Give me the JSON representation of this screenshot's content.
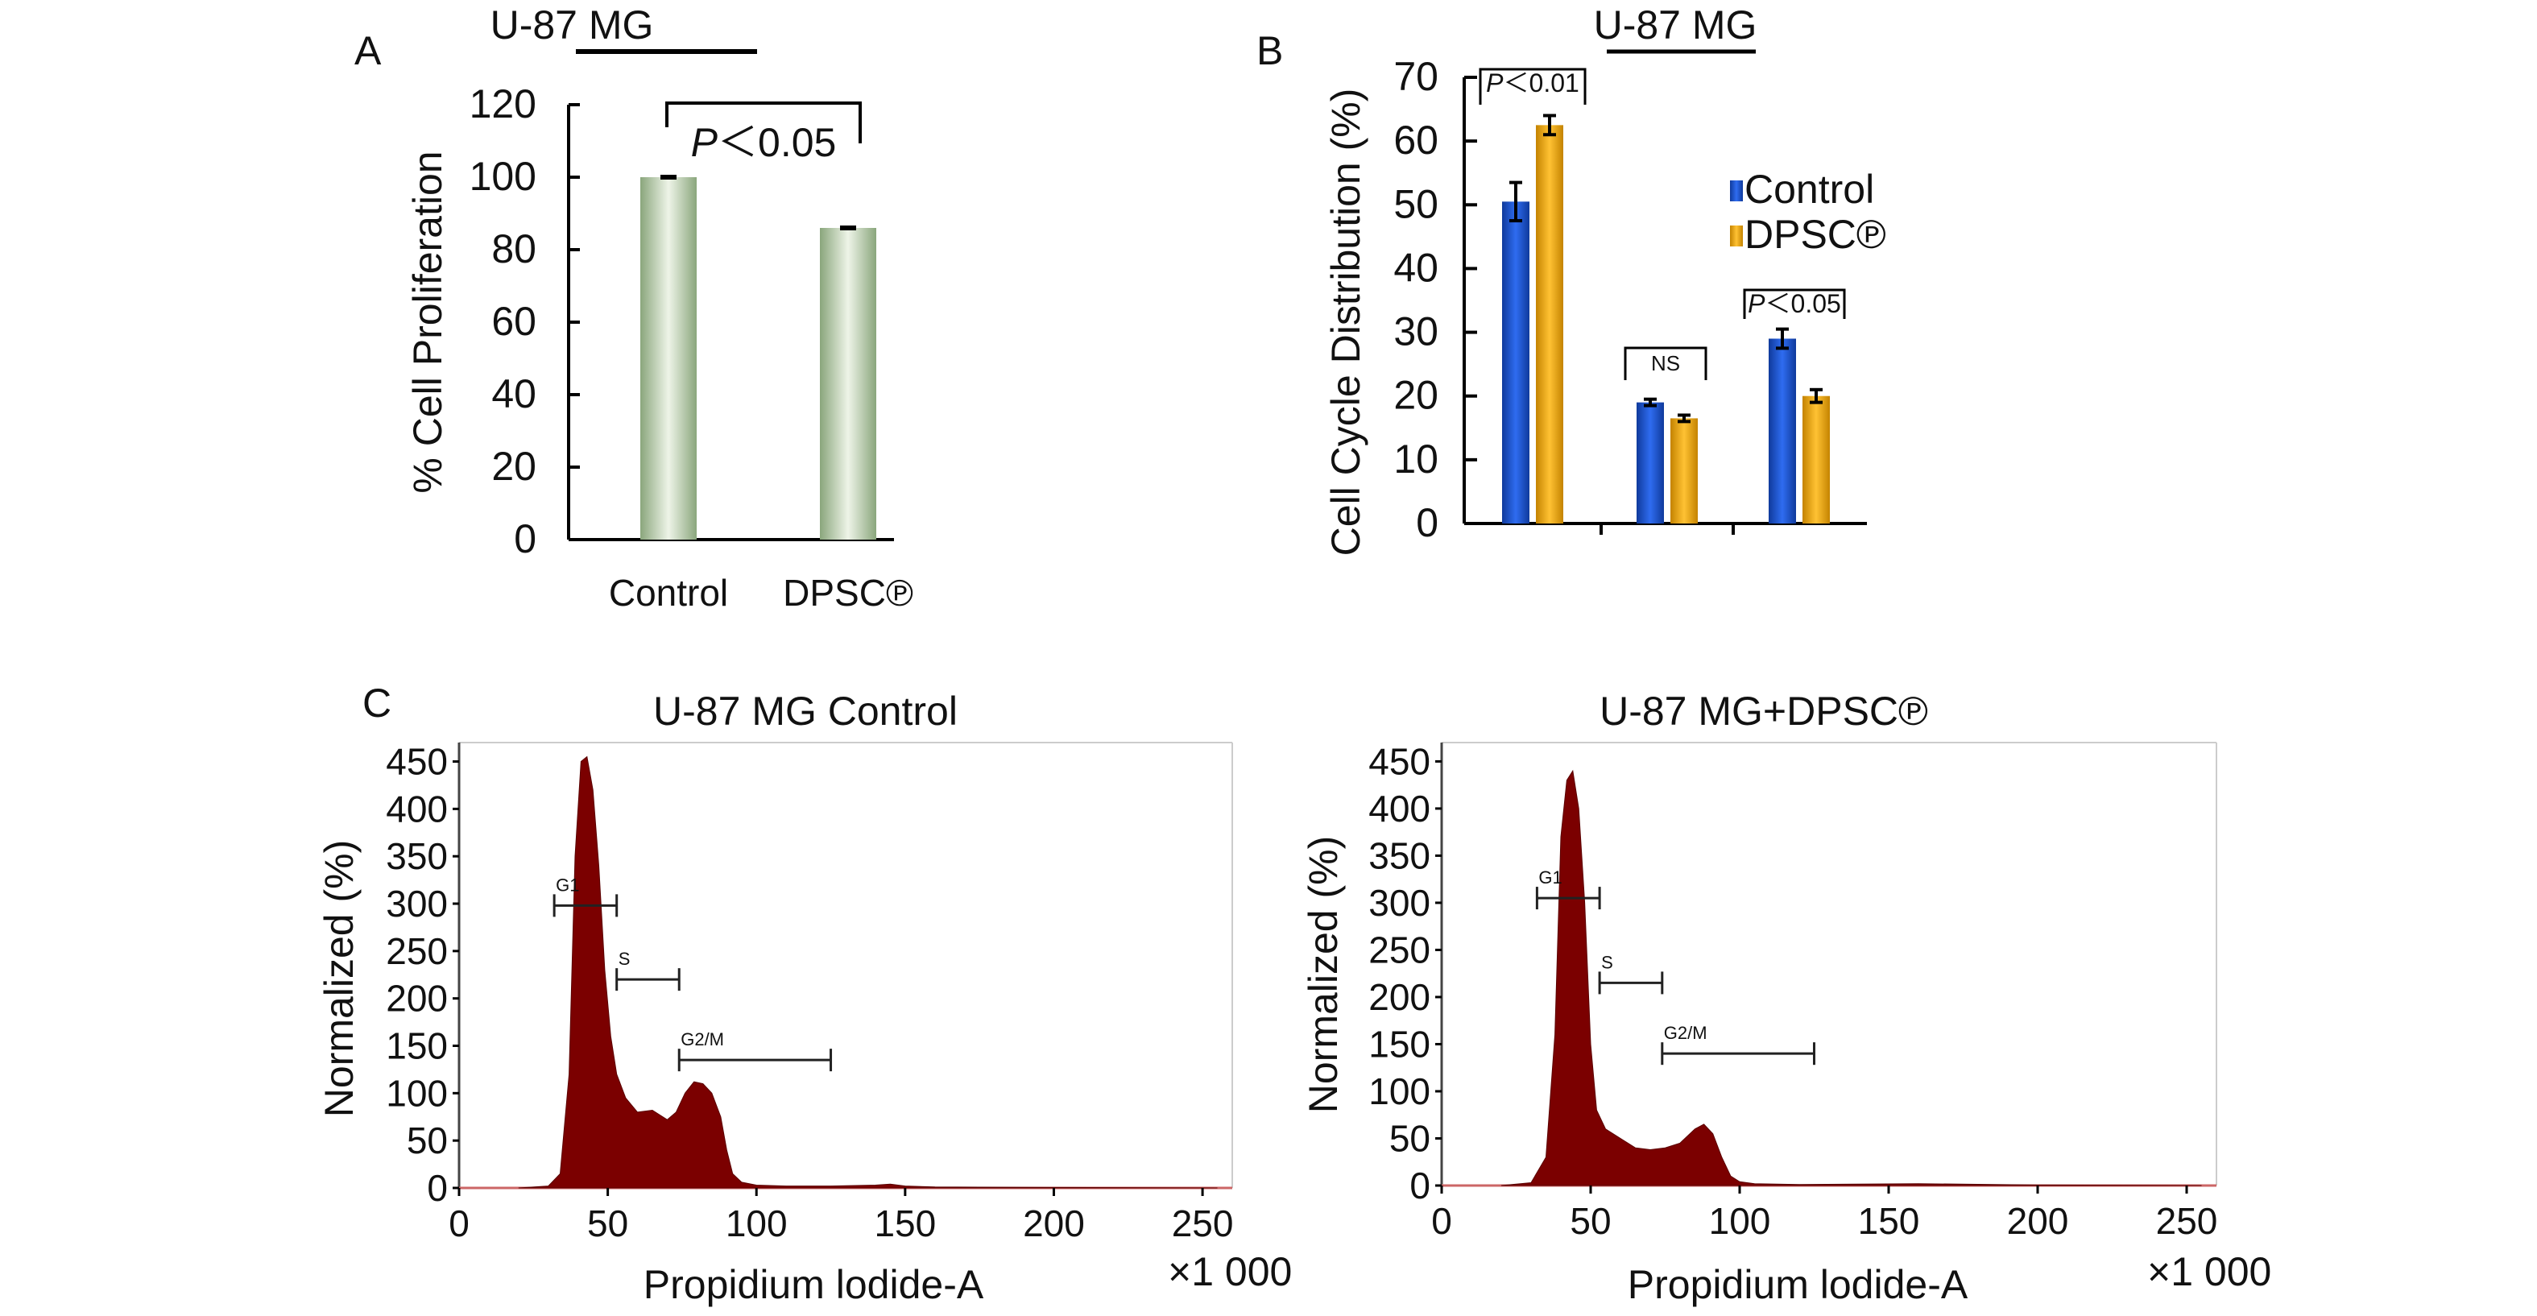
{
  "colors": {
    "bar_green_light": "#eef4e8",
    "bar_green_dark": "#8aa67c",
    "control_blue": "#1f5bd6",
    "dpsc_gold": "#f2b01e",
    "histogram_red": "#7b0000"
  },
  "chart_data": [
    {
      "panel": "A",
      "type": "bar",
      "title": "U-87 MG",
      "ylabel": "% Cell Proliferation",
      "xlabel": "",
      "ylim": [
        0,
        120
      ],
      "yticks": [
        "0",
        "20",
        "40",
        "60",
        "80",
        "100",
        "120"
      ],
      "categories": [
        "Control",
        "DPSC℗"
      ],
      "values": [
        100,
        86
      ],
      "errors": [
        0.4,
        0.4
      ],
      "annotations": [
        {
          "text_italic": "P",
          "text": "＜0.05",
          "between": [
            "Control",
            "DPSC℗"
          ]
        }
      ],
      "grid": false
    },
    {
      "panel": "B",
      "type": "bar",
      "title": "U-87 MG",
      "ylabel": "Cell Cycle Distribution (%)",
      "xlabel": "",
      "ylim": [
        0,
        70
      ],
      "yticks": [
        "0",
        "10",
        "20",
        "30",
        "40",
        "50",
        "60",
        "70"
      ],
      "categories": [
        "",
        "",
        ""
      ],
      "series": [
        {
          "name": "Control",
          "values": [
            50.5,
            19,
            29
          ],
          "errors": [
            3,
            0.5,
            1.5
          ]
        },
        {
          "name": "DPSC℗",
          "values": [
            62.5,
            16.5,
            20
          ],
          "errors": [
            1.5,
            0.5,
            1
          ]
        }
      ],
      "legend": "right",
      "annotations": [
        {
          "text_italic": "P",
          "text": "＜0.01",
          "group": 0
        },
        {
          "text_italic": "",
          "text": "NS",
          "group": 1
        },
        {
          "text_italic": "P",
          "text": "＜0.05",
          "group": 2
        }
      ],
      "grid": false
    },
    {
      "panel": "C",
      "type": "area",
      "title": "U-87 MG Control",
      "ylabel": "Normalized (%)",
      "xlabel": "Propidium lodide-A",
      "x_multiplier": "×1 000",
      "xlim": [
        0,
        260
      ],
      "ylim": [
        0,
        470
      ],
      "xticks": [
        "0",
        "50",
        "100",
        "150",
        "200",
        "250"
      ],
      "yticks": [
        "0",
        "50",
        "100",
        "150",
        "200",
        "250",
        "300",
        "350",
        "400",
        "450"
      ],
      "x": [
        20,
        30,
        34,
        37,
        39,
        41,
        43,
        45,
        47,
        49,
        51,
        53,
        56,
        60,
        65,
        70,
        73,
        76,
        79,
        82,
        85,
        88,
        90,
        92,
        95,
        100,
        110,
        125,
        140,
        145,
        150,
        160,
        200,
        255
      ],
      "values": [
        0,
        2,
        15,
        120,
        350,
        450,
        455,
        420,
        340,
        230,
        160,
        120,
        95,
        80,
        82,
        72,
        80,
        100,
        112,
        110,
        100,
        75,
        40,
        15,
        6,
        3,
        2,
        2,
        3,
        4,
        2,
        1,
        0.5,
        0
      ],
      "gates": [
        {
          "label": "G1",
          "from": 32,
          "to": 53,
          "y": 298
        },
        {
          "label": "S",
          "from": 53,
          "to": 74,
          "y": 220
        },
        {
          "label": "G2/M",
          "from": 74,
          "to": 125,
          "y": 135
        }
      ],
      "grid": false
    },
    {
      "panel": "C",
      "type": "area",
      "title": "U-87 MG+DPSC℗",
      "ylabel": "Normalized (%)",
      "xlabel": "Propidium lodide-A",
      "x_multiplier": "×1 000",
      "xlim": [
        0,
        260
      ],
      "ylim": [
        0,
        470
      ],
      "xticks": [
        "0",
        "50",
        "100",
        "150",
        "200",
        "250"
      ],
      "yticks": [
        "0",
        "50",
        "100",
        "150",
        "200",
        "250",
        "300",
        "350",
        "400",
        "450"
      ],
      "x": [
        20,
        30,
        35,
        38,
        40,
        42,
        44,
        46,
        48,
        50,
        52,
        55,
        60,
        65,
        70,
        75,
        80,
        85,
        88,
        91,
        94,
        97,
        100,
        105,
        120,
        160,
        200,
        255
      ],
      "values": [
        0,
        3,
        30,
        160,
        370,
        430,
        440,
        400,
        300,
        150,
        80,
        60,
        50,
        40,
        38,
        40,
        45,
        60,
        65,
        55,
        30,
        10,
        4,
        2,
        1,
        2,
        0.5,
        0
      ],
      "gates": [
        {
          "label": "G1",
          "from": 32,
          "to": 53,
          "y": 305
        },
        {
          "label": "S",
          "from": 53,
          "to": 74,
          "y": 215
        },
        {
          "label": "G2/M",
          "from": 74,
          "to": 125,
          "y": 140
        }
      ],
      "grid": false
    }
  ],
  "panels": {
    "a": {
      "letter": "A"
    },
    "b": {
      "letter": "B"
    },
    "c": {
      "letter": "C"
    }
  }
}
